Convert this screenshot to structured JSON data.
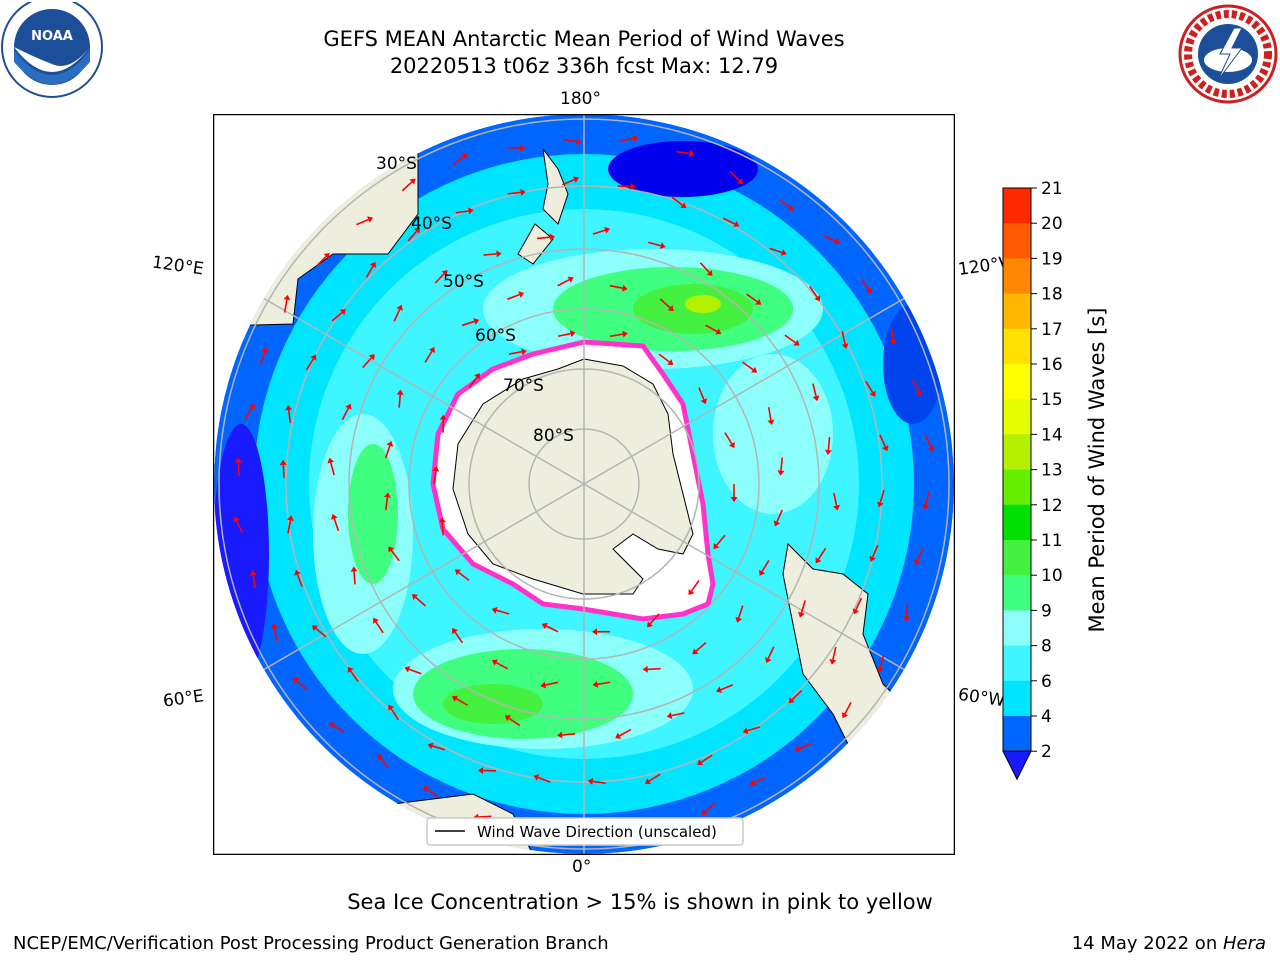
{
  "title_line1": "GEFS MEAN Antarctic Mean Period of Wind Waves",
  "title_line2": "20220513 t06z 336h fcst   Max: 12.79",
  "logos": {
    "left": "NOAA",
    "right": "NATIONAL WEATHER SERVICE"
  },
  "lon_labels": {
    "top": "180°",
    "upper_left": "120°E",
    "upper_right": "120°W",
    "lower_left": "60°E",
    "lower_right": "60°W",
    "bottom": "0°"
  },
  "lat_labels": [
    "30°S",
    "40°S",
    "50°S",
    "60°S",
    "70°S",
    "80°S"
  ],
  "legend_label": "Wind Wave Direction (unscaled)",
  "colorbar": {
    "label": "Mean Period of Wind Waves [s]",
    "ticks": [
      "2",
      "4",
      "6",
      "8",
      "9",
      "10",
      "11",
      "12",
      "13",
      "14",
      "15",
      "16",
      "17",
      "18",
      "19",
      "20",
      "21"
    ],
    "colors": [
      "#0066ff",
      "#00e5ff",
      "#3ff5ff",
      "#8cfffb",
      "#40ff80",
      "#44f040",
      "#00e000",
      "#66ee00",
      "#b3f000",
      "#e6ff00",
      "#ffff00",
      "#ffe000",
      "#ffb800",
      "#ff8800",
      "#ff5a00",
      "#ff2a00"
    ],
    "under_color": "#1a1aff"
  },
  "sea_ice_note": "Sea Ice Concentration > 15% is shown in pink to yellow",
  "footer_left": "NCEP/EMC/Verification Post Processing Product Generation Branch",
  "footer_right_prefix": "14 May 2022 on ",
  "footer_right_machine": "Hera",
  "colors": {
    "land": "#eeeedf",
    "ice": "#ffffff",
    "ice_edge": "#ff33cc",
    "arrow": "#ff0000",
    "grid": "#b4b4b4"
  }
}
